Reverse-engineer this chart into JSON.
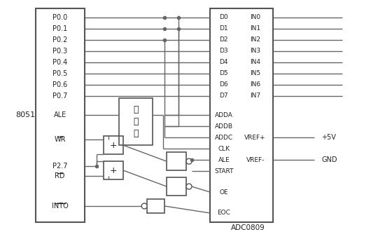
{
  "fig_width": 5.3,
  "fig_height": 3.31,
  "dpi": 100,
  "bg_color": "#ffffff",
  "line_color": "#666666",
  "text_color": "#222222",
  "box_color": "#555555",
  "chip_label": "8051",
  "adc_label": "ADC0809",
  "left_pins": [
    "P0.0",
    "P0.1",
    "P0.2",
    "P0.3",
    "P0.4",
    "P0.5",
    "P0.6",
    "P0.7",
    "ALE",
    "WR",
    "P2.7",
    "RD",
    "INTO"
  ],
  "right_pins_left": [
    "D0",
    "D1",
    "D2",
    "D3",
    "D4",
    "D5",
    "D6",
    "D7",
    "ADDA",
    "ADDB",
    "ADDC",
    "CLK",
    "ALE",
    "START",
    "OE",
    "EOC"
  ],
  "right_pins_right": [
    "IN0",
    "IN1",
    "IN2",
    "IN3",
    "IN4",
    "IN5",
    "IN6",
    "IN7",
    "VREF+",
    "VREF-"
  ],
  "vref_labels": [
    "+5V",
    "GND"
  ]
}
